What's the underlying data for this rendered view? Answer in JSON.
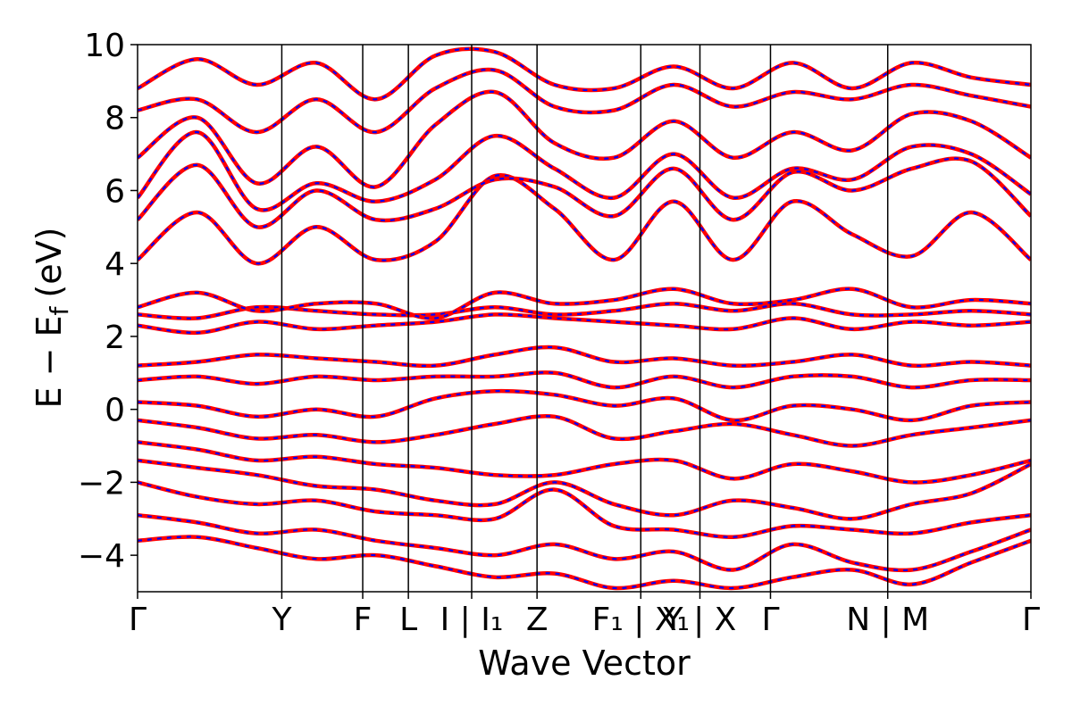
{
  "chart_data": {
    "type": "line",
    "xlabel": "Wave Vector",
    "ylabel_main": "E − E",
    "ylabel_sub": "f",
    "ylabel_unit": "(eV)",
    "ylim": [
      -5,
      10
    ],
    "yticks": [
      -4,
      -2,
      0,
      2,
      4,
      6,
      8,
      10
    ],
    "ytick_labels": [
      "−4",
      "−2",
      "0",
      "2",
      "4",
      "6",
      "8",
      "10"
    ],
    "kpoints": [
      {
        "label": "Γ",
        "x": 0.0
      },
      {
        "label": "Y",
        "x": 0.139
      },
      {
        "label": "F",
        "x": 0.217
      },
      {
        "label": "L",
        "x": 0.261
      },
      {
        "label": "I | I₁",
        "x": 0.322
      },
      {
        "label": "Z",
        "x": 0.385
      },
      {
        "label": "F₁ | X₁",
        "x": 0.485
      },
      {
        "label": "Y | X",
        "x": 0.542
      },
      {
        "label": "Γ",
        "x": 0.61
      },
      {
        "label": "N | M",
        "x": 0.723
      },
      {
        "label": "Γ",
        "x": 0.861
      }
    ],
    "series": [
      {
        "color": "#ff0000",
        "style": "solid",
        "values": [
          [
            -3.6,
            -3.5,
            -3.8,
            -4.1,
            -4.0,
            -4.3,
            -4.6,
            -4.5,
            -4.9,
            -4.7,
            -4.9,
            -4.6,
            -4.4,
            -4.8,
            -4.2,
            -3.6
          ],
          [
            -2.9,
            -3.1,
            -3.4,
            -3.3,
            -3.6,
            -3.8,
            -4.0,
            -3.7,
            -4.1,
            -3.9,
            -4.4,
            -3.7,
            -4.2,
            -4.4,
            -3.9,
            -3.3
          ],
          [
            -2.0,
            -2.4,
            -2.6,
            -2.5,
            -2.8,
            -2.9,
            -3.0,
            -2.2,
            -3.2,
            -3.3,
            -3.5,
            -3.2,
            -3.3,
            -3.4,
            -3.1,
            -2.9
          ],
          [
            -1.4,
            -1.6,
            -1.8,
            -2.1,
            -2.2,
            -2.5,
            -2.6,
            -2.0,
            -2.6,
            -2.9,
            -2.5,
            -2.7,
            -3.0,
            -2.6,
            -2.3,
            -1.5
          ],
          [
            -0.9,
            -1.1,
            -1.4,
            -1.3,
            -1.5,
            -1.6,
            -1.8,
            -1.8,
            -1.5,
            -1.4,
            -1.9,
            -1.5,
            -1.7,
            -2.0,
            -1.8,
            -1.4
          ],
          [
            -0.3,
            -0.5,
            -0.8,
            -0.7,
            -0.9,
            -0.7,
            -0.4,
            -0.2,
            -0.8,
            -0.6,
            -0.4,
            -0.7,
            -1.0,
            -0.7,
            -0.5,
            -0.3
          ],
          [
            0.2,
            0.1,
            -0.2,
            0.0,
            -0.2,
            0.3,
            0.5,
            0.4,
            0.1,
            0.3,
            -0.3,
            0.1,
            0.0,
            -0.3,
            0.1,
            0.2
          ],
          [
            0.8,
            0.9,
            0.7,
            0.9,
            0.8,
            0.9,
            0.9,
            1.0,
            0.6,
            0.9,
            0.6,
            0.9,
            0.9,
            0.6,
            0.8,
            0.8
          ],
          [
            1.2,
            1.3,
            1.5,
            1.4,
            1.3,
            1.2,
            1.5,
            1.7,
            1.3,
            1.4,
            1.2,
            1.3,
            1.5,
            1.2,
            1.3,
            1.2
          ],
          [
            2.3,
            2.1,
            2.4,
            2.2,
            2.3,
            2.4,
            2.6,
            2.5,
            2.4,
            2.3,
            2.2,
            2.5,
            2.2,
            2.4,
            2.3,
            2.4
          ],
          [
            2.6,
            2.5,
            2.8,
            2.7,
            2.6,
            2.6,
            2.8,
            2.6,
            2.7,
            2.9,
            2.7,
            2.9,
            2.6,
            2.6,
            2.7,
            2.6
          ],
          [
            2.8,
            3.2,
            2.7,
            2.9,
            2.9,
            2.5,
            3.2,
            2.9,
            3.0,
            3.3,
            2.9,
            3.0,
            3.3,
            2.8,
            3.0,
            2.9
          ],
          [
            4.1,
            5.4,
            4.0,
            5.0,
            4.1,
            4.6,
            6.4,
            5.5,
            4.1,
            5.7,
            4.1,
            5.7,
            4.8,
            4.2,
            5.4,
            4.1
          ],
          [
            5.2,
            6.7,
            5.0,
            6.0,
            5.2,
            5.5,
            6.3,
            6.1,
            5.3,
            6.6,
            5.2,
            6.5,
            6.0,
            6.6,
            6.8,
            5.3
          ],
          [
            5.8,
            7.6,
            5.5,
            6.2,
            5.7,
            6.3,
            7.5,
            6.6,
            5.8,
            7.0,
            5.8,
            6.6,
            6.3,
            7.2,
            7.0,
            5.9
          ],
          [
            6.9,
            8.0,
            6.2,
            7.2,
            6.1,
            7.8,
            8.7,
            7.3,
            6.9,
            7.9,
            6.9,
            7.6,
            7.1,
            8.1,
            7.9,
            6.9
          ],
          [
            8.2,
            8.5,
            7.6,
            8.5,
            7.6,
            8.8,
            9.3,
            8.3,
            8.2,
            8.9,
            8.3,
            8.7,
            8.5,
            8.9,
            8.6,
            8.3
          ],
          [
            8.8,
            9.6,
            8.9,
            9.5,
            8.5,
            9.7,
            9.8,
            8.9,
            8.8,
            9.4,
            8.8,
            9.5,
            8.8,
            9.5,
            9.1,
            8.9
          ]
        ]
      }
    ]
  }
}
